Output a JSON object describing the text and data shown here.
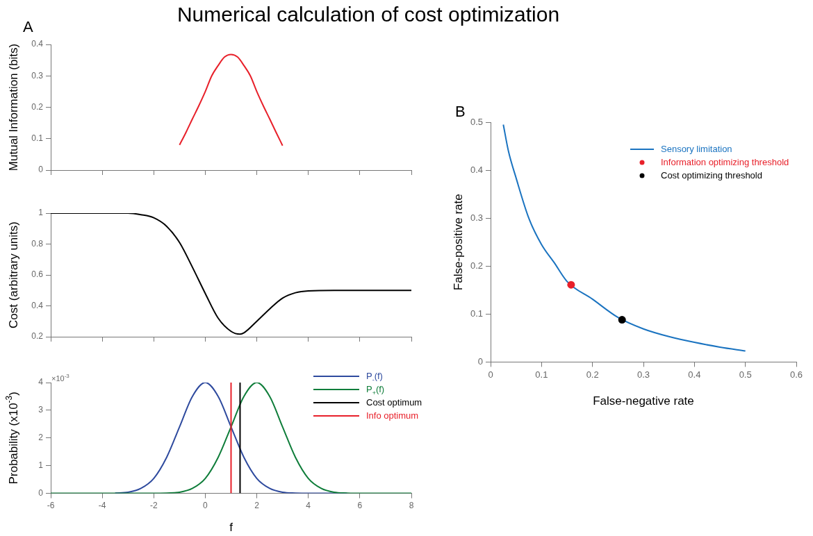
{
  "chart_data": [
    {
      "type": "line",
      "title": "Numerical calculation of cost optimization",
      "annotations": [
        "A"
      ],
      "ylabel": "Mutual Information (bits)",
      "xlim": [
        -6,
        8
      ],
      "xticks": [
        -6,
        -4,
        -2,
        0,
        2,
        4,
        6,
        8
      ],
      "ylim": [
        0,
        0.4
      ],
      "yticks": [
        0,
        0.1,
        0.2,
        0.3,
        0.4
      ],
      "tick_labels": "y",
      "series": [
        {
          "color": "#e8202a",
          "x": [
            -1,
            -0.75,
            -0.5,
            -0.25,
            0,
            0.25,
            0.5,
            0.75,
            1,
            1.25,
            1.5,
            1.75,
            2,
            2.25,
            2.5,
            2.75,
            3
          ],
          "values": [
            0.08,
            0.12,
            0.163,
            0.205,
            0.25,
            0.3,
            0.333,
            0.36,
            0.368,
            0.36,
            0.333,
            0.3,
            0.25,
            0.205,
            0.163,
            0.12,
            0.078
          ]
        }
      ]
    },
    {
      "type": "line",
      "ylabel": "Cost (arbitrary units)",
      "xlim": [
        -6,
        8
      ],
      "xticks": [
        -6,
        -4,
        -2,
        0,
        2,
        4,
        6,
        8
      ],
      "ylim": [
        0.2,
        1
      ],
      "yticks": [
        0.2,
        0.4,
        0.6,
        0.8,
        1
      ],
      "tick_labels": "y",
      "series": [
        {
          "color": "#000000",
          "x": [
            -6,
            -5,
            -4,
            -3,
            -2.5,
            -2,
            -1.5,
            -1,
            -0.5,
            0,
            0.5,
            1,
            1.35,
            1.5,
            2,
            2.5,
            3,
            3.5,
            4,
            5,
            6,
            7,
            8
          ],
          "values": [
            1,
            1,
            1,
            1,
            0.99,
            0.97,
            0.915,
            0.81,
            0.65,
            0.48,
            0.32,
            0.235,
            0.217,
            0.225,
            0.3,
            0.38,
            0.45,
            0.485,
            0.497,
            0.5,
            0.5,
            0.5,
            0.5
          ]
        }
      ]
    },
    {
      "type": "line",
      "annotations": [
        "×10$^{-3}$"
      ],
      "xlabel": "f",
      "ylabel": "Probability (x10$^{-3}$)",
      "xlim": [
        -6,
        8
      ],
      "xticks": [
        -6,
        -4,
        -2,
        0,
        2,
        4,
        6,
        8
      ],
      "ylim": [
        0,
        4
      ],
      "yticks": [
        0,
        1,
        2,
        3,
        4
      ],
      "legend": "top right",
      "x": [
        -6,
        -5.5,
        -5,
        -4.5,
        -4,
        -3.5,
        -3,
        -2.5,
        -2,
        -1.5,
        -1,
        -0.5,
        0,
        0.5,
        1,
        1.5,
        2,
        2.5,
        3,
        3.5,
        4,
        4.5,
        5,
        5.5,
        6,
        6.5,
        7,
        7.5,
        8
      ],
      "series": [
        {
          "name": "P$_{-}$(f)",
          "color": "#2e4a9e",
          "values": [
            null,
            null,
            null,
            null,
            null,
            0.01,
            0.04,
            0.18,
            0.54,
            1.3,
            2.4,
            3.5,
            4,
            3.5,
            2.4,
            1.3,
            0.54,
            0.18,
            0.04,
            0.01,
            0,
            0,
            0,
            0,
            null,
            null,
            null,
            null,
            null
          ]
        },
        {
          "name": "P$_{+}$(f)",
          "color": "#0f7d3a",
          "values": [
            0,
            0,
            0,
            0,
            0,
            0,
            0,
            0,
            0,
            0.01,
            0.04,
            0.18,
            0.54,
            1.3,
            2.4,
            3.5,
            4,
            3.5,
            2.4,
            1.3,
            0.54,
            0.18,
            0.04,
            0.01,
            0,
            0,
            0,
            0,
            0
          ]
        },
        {
          "name": "Cost optimum",
          "color": "#000000",
          "x": [
            1.35,
            1.35
          ],
          "values": [
            0,
            4
          ]
        },
        {
          "name": "Info optimum",
          "color": "#e8202a",
          "x": [
            1,
            1
          ],
          "values": [
            0,
            4
          ]
        }
      ]
    },
    {
      "type": "line",
      "annotations": [
        "B"
      ],
      "xlabel": "False-negative rate",
      "ylabel": "False-positive rate",
      "xlim": [
        0,
        0.6
      ],
      "xticks": [
        0,
        0.1,
        0.2,
        0.3,
        0.4,
        0.5,
        0.6
      ],
      "ylim": [
        0,
        0.5
      ],
      "yticks": [
        0,
        0.1,
        0.2,
        0.3,
        0.4,
        0.5
      ],
      "legend": "top right",
      "series": [
        {
          "name": "Sensory limitation",
          "color": "#1a73c0",
          "x": [
            0.025,
            0.035,
            0.05,
            0.075,
            0.1,
            0.125,
            0.15,
            0.2,
            0.25,
            0.3,
            0.35,
            0.4,
            0.45,
            0.5
          ],
          "values": [
            0.495,
            0.44,
            0.384,
            0.3,
            0.245,
            0.207,
            0.168,
            0.131,
            0.093,
            0.069,
            0.053,
            0.041,
            0.031,
            0.023
          ]
        },
        {
          "name": "Information optimizing threshold",
          "type": "scatter",
          "marker": "circle",
          "color": "#e8202a",
          "x": [
            0.158
          ],
          "values": [
            0.161
          ]
        },
        {
          "name": "Cost optimizing threshold",
          "type": "scatter",
          "marker": "circle",
          "color": "#000000",
          "x": [
            0.258
          ],
          "values": [
            0.088
          ]
        }
      ]
    }
  ]
}
